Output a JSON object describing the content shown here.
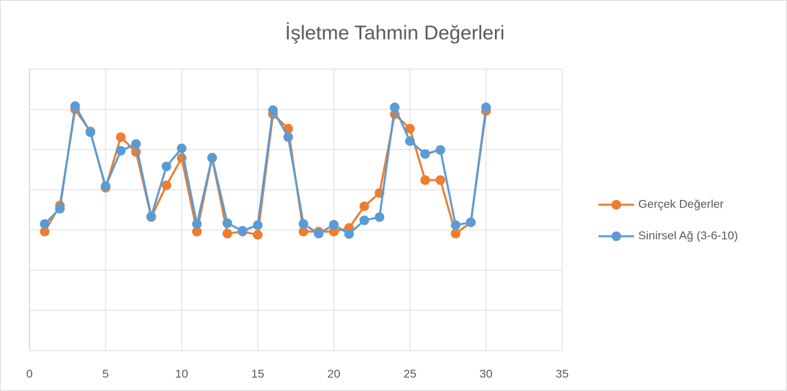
{
  "chart_data": {
    "type": "line",
    "title": "İşletme Tahmin Değerleri",
    "x": [
      1,
      2,
      3,
      4,
      5,
      6,
      7,
      8,
      9,
      10,
      11,
      12,
      13,
      14,
      15,
      16,
      17,
      18,
      19,
      20,
      21,
      22,
      23,
      24,
      25,
      26,
      27,
      28,
      29,
      30
    ],
    "series": [
      {
        "name": "Gerçek Değerler",
        "color": "#ed7d31",
        "values": [
          2.96,
          3.61,
          6.0,
          5.45,
          4.05,
          5.31,
          4.94,
          3.32,
          4.11,
          4.79,
          2.96,
          4.79,
          2.91,
          2.96,
          2.88,
          5.88,
          5.52,
          2.96,
          2.96,
          2.96,
          3.05,
          3.59,
          3.92,
          5.88,
          5.52,
          4.24,
          4.24,
          2.91,
          3.19,
          5.96
        ]
      },
      {
        "name": "Sinirsel Ağ (3-6-10)",
        "color": "#5b9bd5",
        "values": [
          3.15,
          3.53,
          6.08,
          5.43,
          4.09,
          4.97,
          5.14,
          3.34,
          4.58,
          5.03,
          3.15,
          4.8,
          3.17,
          2.98,
          3.12,
          5.98,
          5.31,
          3.15,
          2.91,
          3.13,
          2.9,
          3.24,
          3.32,
          6.05,
          5.21,
          4.89,
          4.99,
          3.12,
          3.19,
          6.05
        ]
      }
    ],
    "xlim": [
      0,
      35
    ],
    "xticks": [
      0,
      5,
      10,
      15,
      20,
      25,
      30,
      35
    ],
    "ylim": [
      0,
      7
    ],
    "yticks": [
      0,
      1,
      2,
      3,
      4,
      5,
      6,
      7
    ],
    "grid": true,
    "legend": "right"
  }
}
